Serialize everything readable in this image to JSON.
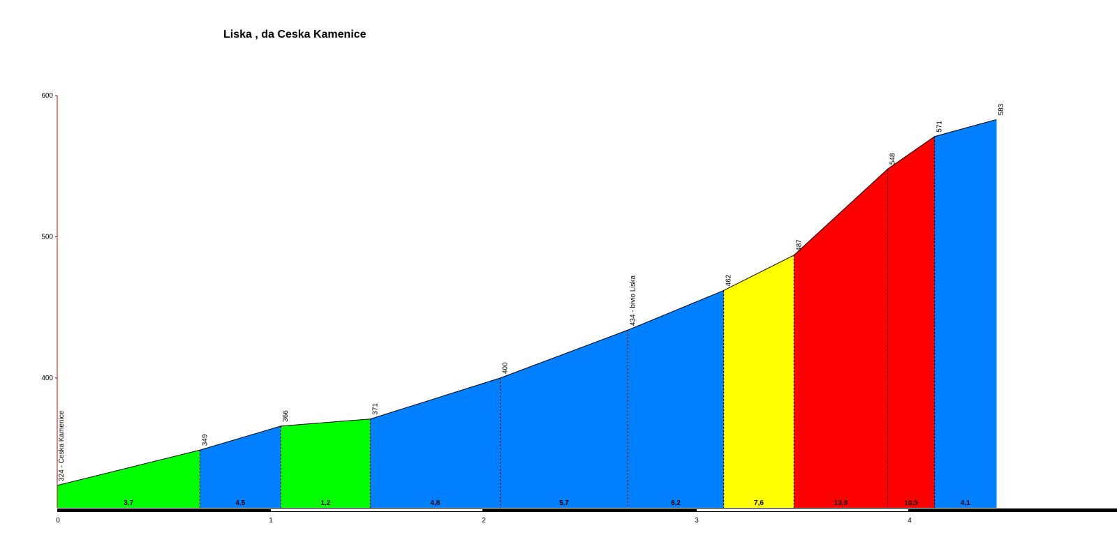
{
  "chart_data": {
    "type": "area",
    "title": "Liska , da Ceska Kamenice",
    "xlabel": "",
    "ylabel": "",
    "xlim": [
      0,
      4.9
    ],
    "ylim": [
      310,
      600
    ],
    "y_ticks": [
      400,
      500,
      600
    ],
    "x_ticks": [
      0,
      1,
      2,
      3,
      4
    ],
    "profile": [
      {
        "x": 0.0,
        "y": 324,
        "label": "324 - Ceska Kamenice"
      },
      {
        "x": 0.67,
        "y": 349,
        "label": "349"
      },
      {
        "x": 1.05,
        "y": 366,
        "label": "366"
      },
      {
        "x": 1.47,
        "y": 371,
        "label": "371"
      },
      {
        "x": 2.08,
        "y": 400,
        "label": "400"
      },
      {
        "x": 2.68,
        "y": 434,
        "label": "434 - bivio Liska"
      },
      {
        "x": 3.13,
        "y": 462,
        "label": "462"
      },
      {
        "x": 3.46,
        "y": 487,
        "label": "487"
      },
      {
        "x": 3.9,
        "y": 548,
        "label": "548"
      },
      {
        "x": 4.12,
        "y": 571,
        "label": "571"
      },
      {
        "x": 4.41,
        "y": 583,
        "label": "583"
      }
    ],
    "segments": [
      {
        "gradient": "3,7",
        "color": "#00ff00"
      },
      {
        "gradient": "4,5",
        "color": "#0080ff"
      },
      {
        "gradient": "1,2",
        "color": "#00ff00"
      },
      {
        "gradient": "4,8",
        "color": "#0080ff"
      },
      {
        "gradient": "5,7",
        "color": "#0080ff"
      },
      {
        "gradient": "6,2",
        "color": "#0080ff"
      },
      {
        "gradient": "7,6",
        "color": "#ffff00"
      },
      {
        "gradient": "13,9",
        "color": "#ff0000"
      },
      {
        "gradient": "10,5",
        "color": "#ff0000"
      },
      {
        "gradient": "4,1",
        "color": "#0080ff"
      }
    ],
    "grid": false
  }
}
